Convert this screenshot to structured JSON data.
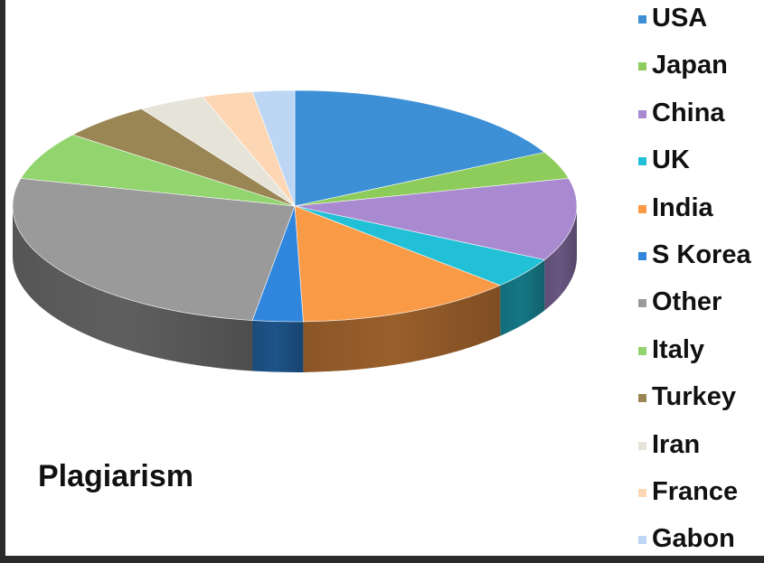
{
  "chart_data": {
    "type": "pie",
    "title": "Plagiarism",
    "legend_position": "right",
    "slices": [
      {
        "label": "USA",
        "value": 18,
        "color": "#3d8fd6"
      },
      {
        "label": "Japan",
        "value": 4,
        "color": "#8dcc5a"
      },
      {
        "label": "China",
        "value": 12,
        "color": "#a98ad0"
      },
      {
        "label": "UK",
        "value": 4.5,
        "color": "#22c0d6"
      },
      {
        "label": "India",
        "value": 13,
        "color": "#f99a46"
      },
      {
        "label": "S Korea",
        "value": 3,
        "color": "#2f86dc"
      },
      {
        "label": "Other",
        "value": 27.5,
        "color": "#9a9a9a"
      },
      {
        "label": "Italy",
        "value": 7,
        "color": "#92d46e"
      },
      {
        "label": "Turkey",
        "value": 5.5,
        "color": "#9a8654"
      },
      {
        "label": "Iran",
        "value": 4,
        "color": "#e6e4d8"
      },
      {
        "label": "France",
        "value": 3,
        "color": "#fdd6b4"
      },
      {
        "label": "Gabon",
        "value": 2.5,
        "color": "#bcd6f4"
      }
    ]
  }
}
